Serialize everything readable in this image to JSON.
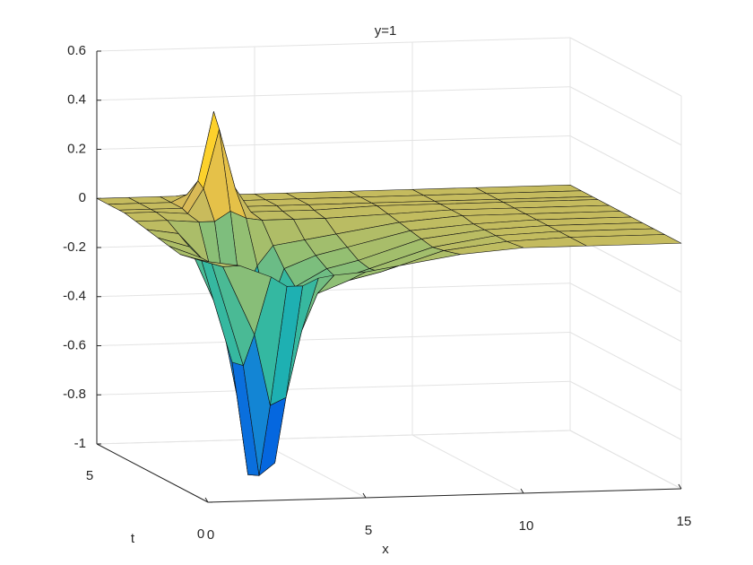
{
  "chart_data": {
    "type": "surface",
    "title": "y=1",
    "xlabel": "x",
    "ylabel": "t",
    "x": [
      0,
      1,
      2,
      2.5,
      3,
      3.5,
      4,
      5,
      6,
      8,
      10,
      12,
      15
    ],
    "t": [
      0,
      0.75,
      1.25,
      1.75,
      2.25,
      2.75,
      3.25,
      3.75,
      4,
      4.5,
      5
    ],
    "z": [
      [
        -0.02,
        -0.04,
        -0.09,
        -0.13,
        -0.13,
        -0.1,
        -0.09,
        -0.08,
        -0.06,
        -0.02,
        0,
        0,
        0
      ],
      [
        -0.04,
        -0.08,
        -0.36,
        -0.65,
        -0.62,
        -0.35,
        -0.2,
        -0.15,
        -0.12,
        -0.04,
        -0.01,
        0,
        0
      ],
      [
        -0.05,
        -0.09,
        -0.51,
        -0.96,
        -0.91,
        -0.47,
        -0.23,
        -0.17,
        -0.13,
        -0.05,
        -0.01,
        0,
        0
      ],
      [
        -0.04,
        -0.09,
        -0.52,
        -0.98,
        -0.93,
        -0.47,
        -0.22,
        -0.15,
        -0.12,
        -0.04,
        -0.01,
        0,
        0
      ],
      [
        -0.03,
        -0.07,
        -0.36,
        -0.68,
        -0.65,
        -0.34,
        -0.17,
        -0.12,
        -0.09,
        -0.03,
        -0.01,
        0,
        0
      ],
      [
        -0.02,
        -0.04,
        -0.18,
        -0.33,
        -0.32,
        -0.18,
        -0.1,
        -0.08,
        -0.06,
        -0.02,
        0,
        0,
        0
      ],
      [
        -0.01,
        -0.01,
        -0.02,
        -0.02,
        0.02,
        -0.01,
        -0.02,
        -0.02,
        -0.02,
        -0.01,
        0,
        0,
        0
      ],
      [
        0,
        0,
        -0.01,
        0.09,
        0.33,
        0.09,
        -0.01,
        -0.01,
        -0.01,
        0,
        0,
        0,
        0
      ],
      [
        0,
        0,
        0,
        0.11,
        0.39,
        0.11,
        0,
        0,
        0,
        0,
        0,
        0,
        0
      ],
      [
        0,
        0,
        0,
        0.03,
        0.09,
        0.03,
        0,
        0,
        0,
        0,
        0,
        0,
        0
      ],
      [
        0,
        0,
        0,
        0,
        0,
        0,
        0,
        0,
        0,
        0,
        0,
        0,
        0
      ]
    ],
    "xlim": [
      0,
      15
    ],
    "xticks": [
      0,
      5,
      10,
      15
    ],
    "tlim": [
      0,
      5
    ],
    "tticks": [
      0,
      5
    ],
    "zlim": [
      -1,
      0.6
    ],
    "zticks": [
      -1,
      -0.8,
      -0.6,
      -0.4,
      -0.2,
      0,
      0.2,
      0.4,
      0.6
    ],
    "colormap": "parula",
    "grid": true
  }
}
